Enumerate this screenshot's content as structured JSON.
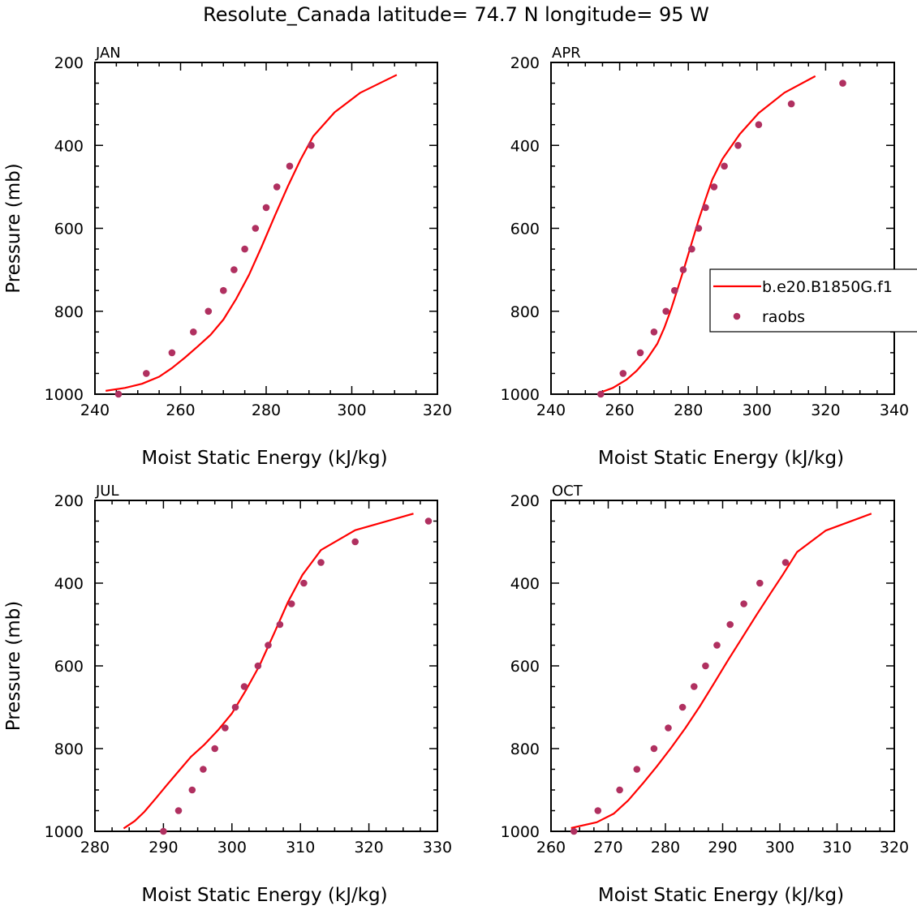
{
  "figure": {
    "title": "Resolute_Canada  latitude= 74.7 N longitude= 95 W"
  },
  "colors": {
    "model": "#ff0000",
    "obs": "#b03060",
    "axes": "#000000"
  },
  "legend": {
    "placement": "right-middle of APR panel",
    "entries": [
      {
        "label": "b.e20.B1850G.f1",
        "style": "line",
        "series": "model"
      },
      {
        "label": "raobs",
        "style": "marker",
        "series": "obs"
      }
    ]
  },
  "chart_data": [
    {
      "type": "line",
      "panel": "JAN",
      "xlabel": "Moist Static Energy (kJ/kg)",
      "ylabel": "Pressure (mb)",
      "xlim": [
        240,
        320
      ],
      "ylim": [
        1000,
        200
      ],
      "y_reversed": true,
      "xticks": [
        "240",
        "260",
        "280",
        "300",
        "320"
      ],
      "yticks": [
        "200",
        "400",
        "600",
        "800",
        "1000"
      ],
      "series": [
        {
          "name": "b.e20.B1850G.f1",
          "kind": "line",
          "x": [
            242.5,
            247,
            251,
            255,
            258,
            261,
            264,
            267,
            270,
            273,
            276,
            279,
            282,
            285,
            288,
            291,
            296,
            302,
            310.5
          ],
          "y": [
            992,
            985,
            975,
            958,
            937,
            912,
            885,
            857,
            820,
            770,
            712,
            643,
            570,
            500,
            435,
            378,
            320,
            273,
            230
          ]
        },
        {
          "name": "raobs",
          "kind": "scatter",
          "x": [
            245.5,
            252,
            258,
            263,
            266.5,
            270,
            272.5,
            275,
            277.5,
            280,
            282.5,
            285.5,
            290.5
          ],
          "y": [
            1000,
            950,
            900,
            850,
            800,
            750,
            700,
            650,
            600,
            550,
            500,
            450,
            400
          ]
        }
      ]
    },
    {
      "type": "line",
      "panel": "APR",
      "xlabel": "Moist Static Energy (kJ/kg)",
      "ylabel": "",
      "xlim": [
        240,
        340
      ],
      "ylim": [
        1000,
        200
      ],
      "y_reversed": true,
      "xticks": [
        "240",
        "260",
        "280",
        "300",
        "320",
        "340"
      ],
      "yticks": [
        "200",
        "400",
        "600",
        "800",
        "1000"
      ],
      "series": [
        {
          "name": "b.e20.B1850G.f1",
          "kind": "line",
          "x": [
            254,
            258,
            262,
            265,
            268,
            271,
            273,
            275,
            277,
            279,
            281,
            283,
            285,
            287,
            290,
            295,
            300.5,
            308,
            317
          ],
          "y": [
            997,
            985,
            965,
            943,
            915,
            878,
            840,
            795,
            743,
            690,
            635,
            580,
            530,
            482,
            432,
            373,
            322,
            273,
            233
          ]
        },
        {
          "name": "raobs",
          "kind": "scatter",
          "x": [
            254.5,
            261,
            266,
            270,
            273.5,
            276,
            278.5,
            281,
            283,
            285,
            287.5,
            290.5,
            294.5,
            300.5,
            310,
            325
          ],
          "y": [
            1000,
            950,
            900,
            850,
            800,
            750,
            700,
            650,
            600,
            550,
            500,
            450,
            400,
            350,
            300,
            250
          ]
        }
      ]
    },
    {
      "type": "line",
      "panel": "JUL",
      "xlabel": "Moist Static Energy (kJ/kg)",
      "ylabel": "Pressure (mb)",
      "xlim": [
        280,
        330
      ],
      "ylim": [
        1000,
        200
      ],
      "y_reversed": true,
      "xticks": [
        "280",
        "290",
        "300",
        "310",
        "320",
        "330"
      ],
      "yticks": [
        "200",
        "400",
        "600",
        "800",
        "1000"
      ],
      "series": [
        {
          "name": "b.e20.B1850G.f1",
          "kind": "line",
          "x": [
            284.2,
            285.8,
            287.2,
            288.8,
            290.5,
            292.2,
            294,
            296,
            298,
            300,
            302,
            304,
            306.2,
            308.2,
            310.3,
            313,
            318,
            326.5
          ],
          "y": [
            993,
            975,
            953,
            922,
            888,
            855,
            820,
            790,
            755,
            715,
            660,
            600,
            520,
            445,
            380,
            320,
            272,
            232
          ]
        },
        {
          "name": "raobs",
          "kind": "scatter",
          "x": [
            290,
            292.2,
            294.2,
            295.8,
            297.5,
            299,
            300.5,
            301.8,
            303.8,
            305.3,
            307,
            308.7,
            310.5,
            313,
            318,
            328.7
          ],
          "y": [
            1000,
            950,
            900,
            850,
            800,
            750,
            700,
            650,
            600,
            550,
            500,
            450,
            400,
            350,
            300,
            250
          ]
        }
      ]
    },
    {
      "type": "line",
      "panel": "OCT",
      "xlabel": "Moist Static Energy (kJ/kg)",
      "ylabel": "",
      "xlim": [
        260,
        320
      ],
      "ylim": [
        1000,
        200
      ],
      "y_reversed": true,
      "xticks": [
        "260",
        "270",
        "280",
        "290",
        "300",
        "310",
        "320"
      ],
      "yticks": [
        "200",
        "400",
        "600",
        "800",
        "1000"
      ],
      "series": [
        {
          "name": "b.e20.B1850G.f1",
          "kind": "line",
          "x": [
            263.5,
            268,
            271,
            273.5,
            276,
            278.5,
            281,
            283.5,
            286,
            288.5,
            291,
            293.5,
            296,
            298.5,
            300.5,
            303,
            308,
            316
          ],
          "y": [
            992,
            978,
            957,
            925,
            885,
            843,
            798,
            750,
            698,
            642,
            585,
            530,
            475,
            422,
            380,
            325,
            273,
            232
          ]
        },
        {
          "name": "raobs",
          "kind": "scatter",
          "x": [
            264,
            268.2,
            272,
            275,
            278,
            280.5,
            283,
            285,
            287,
            289,
            291.3,
            293.7,
            296.5,
            301
          ],
          "y": [
            1000,
            950,
            900,
            850,
            800,
            750,
            700,
            650,
            600,
            550,
            500,
            450,
            400,
            350
          ]
        }
      ]
    }
  ]
}
